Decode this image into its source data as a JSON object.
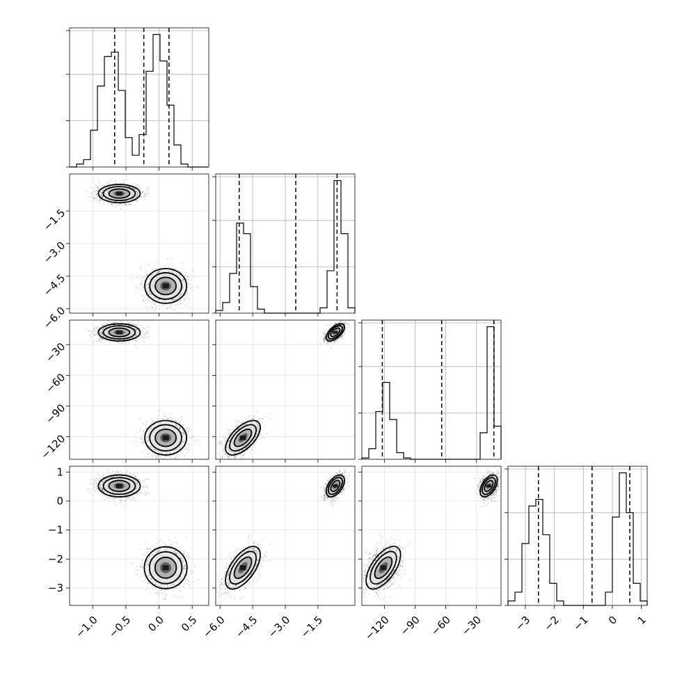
{
  "chart_data": {
    "type": "corner",
    "title": "",
    "parameters": [
      {
        "name": "",
        "range": [
          -1.35,
          0.75
        ],
        "ticks": [
          -1.0,
          -0.5,
          0.0,
          0.5
        ],
        "tick_labels": [
          "−1.0",
          "−0.5",
          "0.0",
          "0.5"
        ],
        "quantiles": [
          -0.67,
          -0.23,
          0.15
        ],
        "hist_edges": [
          -1.35,
          -1.245,
          -1.14,
          -1.035,
          -0.93,
          -0.825,
          -0.72,
          -0.615,
          -0.51,
          -0.405,
          -0.3,
          -0.195,
          -0.09,
          0.015,
          0.12,
          0.225,
          0.33,
          0.435,
          0.54,
          0.645,
          0.75
        ],
        "hist_values": [
          0,
          2,
          5,
          25,
          55,
          75,
          78,
          52,
          20,
          8,
          22,
          65,
          90,
          72,
          42,
          15,
          2,
          0,
          0,
          0
        ]
      },
      {
        "name": "",
        "range": [
          -6.2,
          0.2
        ],
        "ticks": [
          -6.0,
          -4.5,
          -3.0,
          -1.5
        ],
        "tick_labels": [
          "−6.0",
          "−4.5",
          "−3.0",
          "−1.5"
        ],
        "quantiles": [
          -5.12,
          -2.52,
          -0.62
        ],
        "hist_edges": [
          -6.2,
          -5.88,
          -5.56,
          -5.24,
          -4.92,
          -4.6,
          -4.28,
          -3.96,
          -3.64,
          -3.32,
          -3.0,
          -2.68,
          -2.36,
          -2.04,
          -1.72,
          -1.4,
          -1.08,
          -0.76,
          -0.44,
          -0.12,
          0.2
        ],
        "hist_values": [
          2,
          8,
          30,
          68,
          60,
          20,
          3,
          0,
          0,
          0,
          0,
          0,
          0,
          0,
          0,
          4,
          32,
          100,
          60,
          4
        ]
      },
      {
        "name": "",
        "range": [
          -142,
          -6
        ],
        "ticks": [
          -120,
          -90,
          -60,
          -30
        ],
        "tick_labels": [
          "−120",
          "−90",
          "−60",
          "−30"
        ],
        "quantiles": [
          -122,
          -64,
          -13
        ],
        "hist_edges": [
          -142,
          -135.2,
          -128.4,
          -121.6,
          -114.8,
          -108,
          -101.2,
          -94.4,
          -87.6,
          -80.8,
          -74,
          -67.2,
          -60.4,
          -53.6,
          -46.8,
          -40,
          -33.2,
          -26.4,
          -19.6,
          -12.8,
          -6
        ],
        "hist_values": [
          1,
          8,
          36,
          58,
          30,
          5,
          1,
          0,
          0,
          0,
          0,
          0,
          0,
          0,
          0,
          0,
          0,
          20,
          100,
          25
        ]
      },
      {
        "name": "",
        "range": [
          -3.6,
          1.2
        ],
        "ticks": [
          -3,
          -2,
          -1,
          0,
          1
        ],
        "tick_labels": [
          "−3",
          "−2",
          "−1",
          "0",
          "1"
        ],
        "quantiles": [
          -2.55,
          -0.7,
          0.6
        ],
        "hist_edges": [
          -3.6,
          -3.36,
          -3.12,
          -2.88,
          -2.64,
          -2.4,
          -2.16,
          -1.92,
          -1.68,
          -1.44,
          -1.2,
          -0.96,
          -0.72,
          -0.48,
          -0.24,
          0.0,
          0.24,
          0.48,
          0.72,
          0.96,
          1.2
        ],
        "hist_values": [
          2,
          6,
          28,
          45,
          48,
          32,
          10,
          2,
          0,
          0,
          0,
          0,
          0,
          0,
          6,
          40,
          60,
          42,
          10,
          2
        ]
      }
    ],
    "modes": [
      {
        "means": [
          -0.6,
          -0.7,
          -18,
          0.52
        ],
        "sd": [
          0.15,
          0.2,
          4,
          0.18
        ],
        "weight": 0.5,
        "corr": [
          [
            1,
            0,
            0,
            0
          ],
          [
            0,
            1,
            0.6,
            0.5
          ],
          [
            0,
            0.6,
            1,
            0.5
          ],
          [
            0,
            0.5,
            0.5,
            1
          ]
        ]
      },
      {
        "means": [
          0.1,
          -4.95,
          -121,
          -2.3
        ],
        "sd": [
          0.15,
          0.38,
          8,
          0.35
        ],
        "weight": 0.5,
        "corr": [
          [
            1,
            0,
            0,
            0
          ],
          [
            0,
            1,
            0.6,
            0.6
          ],
          [
            0,
            0.6,
            1,
            0.6
          ],
          [
            0,
            0.6,
            0.6,
            1
          ]
        ]
      }
    ],
    "grid": true,
    "colors": {
      "line": "#000000",
      "grid": "#b0b0b0",
      "points": "#000000",
      "fill_low": "#f0f0f0",
      "fill_high": "#202020"
    }
  }
}
